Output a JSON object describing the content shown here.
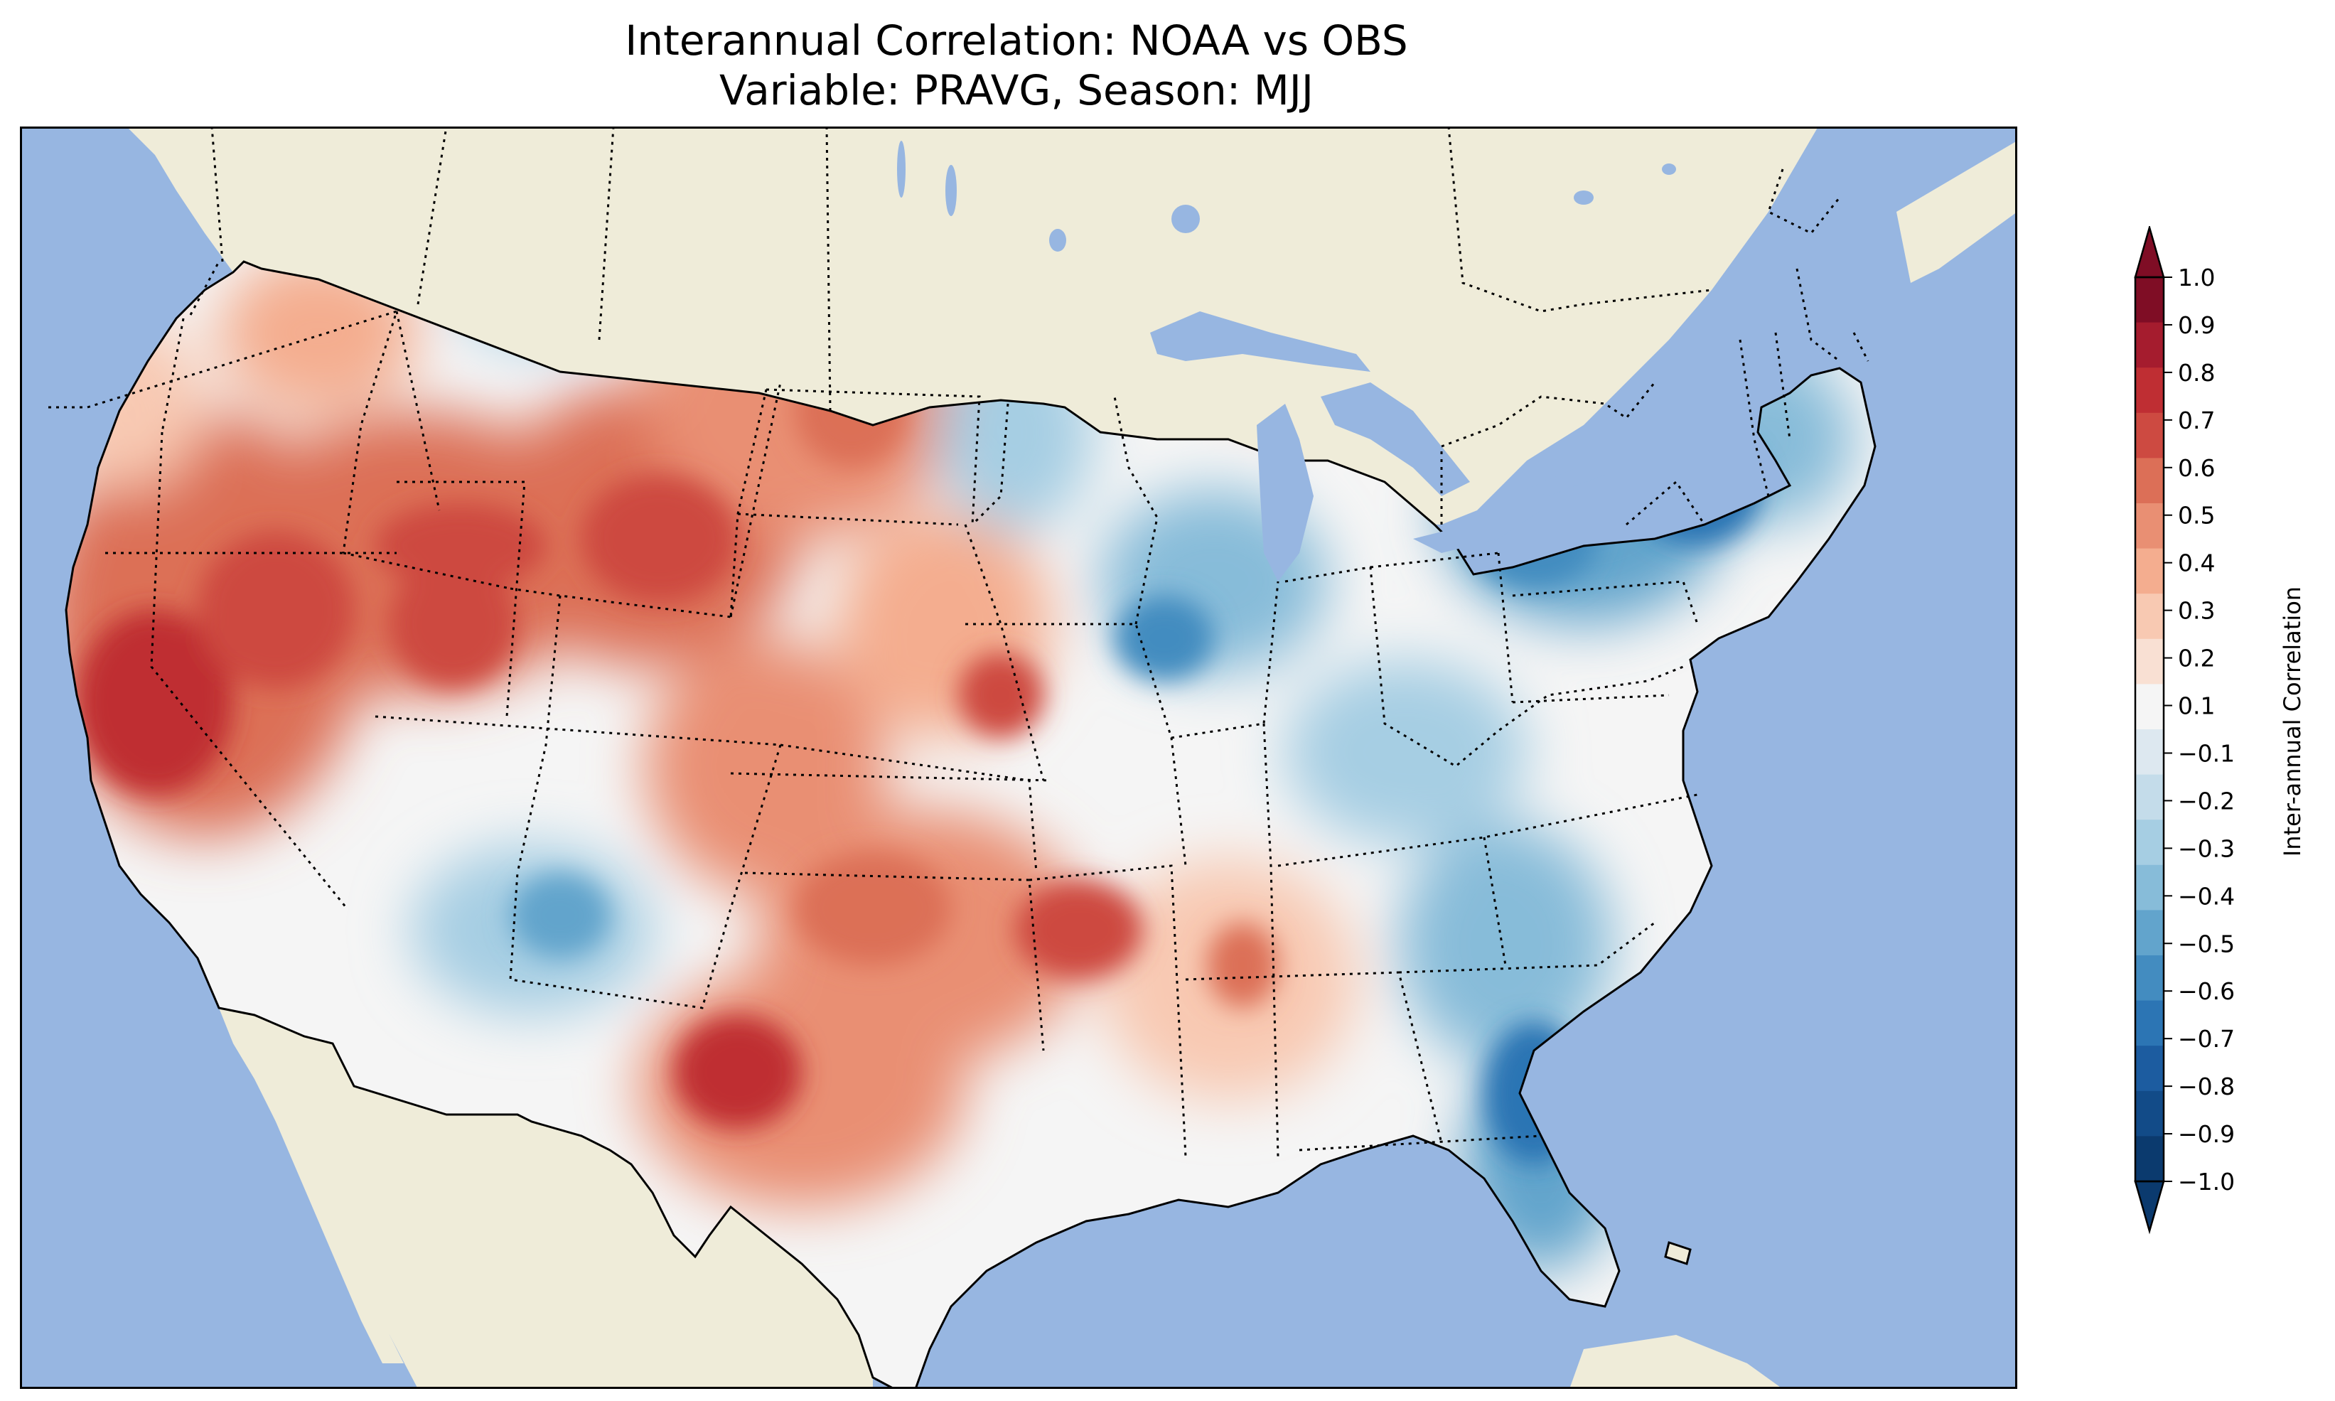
{
  "title_line1": "Interannual Correlation: NOAA vs OBS",
  "title_line2": "Variable: PRAVG, Season: MJJ",
  "colorbar": {
    "label": "Inter-annual Correlation",
    "ticks": [
      "1.0",
      "0.9",
      "0.8",
      "0.7",
      "0.6",
      "0.5",
      "0.4",
      "0.3",
      "0.2",
      "0.1",
      "−0.1",
      "−0.2",
      "−0.3",
      "−0.4",
      "−0.5",
      "−0.6",
      "−0.7",
      "−0.8",
      "−0.9",
      "−1.0"
    ],
    "colors_top_to_bottom": [
      "#7f0d25",
      "#a51c2e",
      "#bf2e33",
      "#cd4a41",
      "#dc6f57",
      "#e98f73",
      "#f4ad8f",
      "#f8c9b2",
      "#f9e0d3",
      "#f5f5f5",
      "#dde8f0",
      "#c4dcea",
      "#a6cee3",
      "#87bcd9",
      "#62a4cc",
      "#438cc0",
      "#2c75b4",
      "#1c5ca0",
      "#124b88",
      "#0b3a6e"
    ],
    "extend": "both"
  },
  "colors": {
    "ocean": "#97b6e1",
    "land": "#efecd9",
    "border": "#000000"
  }
}
